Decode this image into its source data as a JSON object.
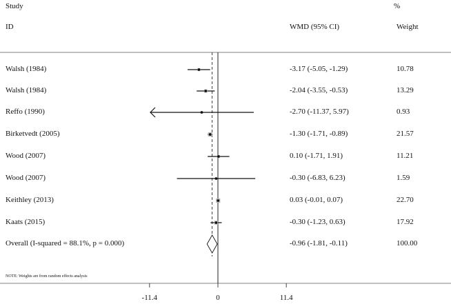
{
  "header": {
    "study_label": "Study",
    "id_label": "ID",
    "effect_label": "WMD (95% CI)",
    "pct_label": "%",
    "weight_label": "Weight"
  },
  "note": "NOTE: Weights are from random effects analysis",
  "chart_data": {
    "type": "forest",
    "effect_measure": "WMD (95% CI)",
    "studies": [
      {
        "study": "Walsh (1984)",
        "wmd": -3.17,
        "lower": -5.05,
        "upper": -1.29,
        "ci_text": "-3.17 (-5.05, -1.29)",
        "weight": "10.78"
      },
      {
        "study": "Walsh (1984)",
        "wmd": -2.04,
        "lower": -3.55,
        "upper": -0.53,
        "ci_text": "-2.04 (-3.55, -0.53)",
        "weight": "13.29"
      },
      {
        "study": "Reffo (1990)",
        "wmd": -2.7,
        "lower": -11.37,
        "upper": 5.97,
        "ci_text": "-2.70 (-11.37, 5.97)",
        "weight": "0.93"
      },
      {
        "study": "Birketvedt (2005)",
        "wmd": -1.3,
        "lower": -1.71,
        "upper": -0.89,
        "ci_text": "-1.30 (-1.71, -0.89)",
        "weight": "21.57"
      },
      {
        "study": "Wood (2007)",
        "wmd": 0.1,
        "lower": -1.71,
        "upper": 1.91,
        "ci_text": "0.10 (-1.71, 1.91)",
        "weight": "11.21"
      },
      {
        "study": "Wood (2007)",
        "wmd": -0.3,
        "lower": -6.83,
        "upper": 6.23,
        "ci_text": "-0.30 (-6.83, 6.23)",
        "weight": "1.59"
      },
      {
        "study": "Keithley (2013)",
        "wmd": 0.03,
        "lower": -0.01,
        "upper": 0.07,
        "ci_text": "0.03 (-0.01, 0.07)",
        "weight": "22.70"
      },
      {
        "study": "Kaats (2015)",
        "wmd": -0.3,
        "lower": -1.23,
        "upper": 0.63,
        "ci_text": "-0.30 (-1.23, 0.63)",
        "weight": "17.92"
      }
    ],
    "overall": {
      "label": "Overall  (I-squared = 88.1%, p = 0.000)",
      "wmd": -0.96,
      "lower": -1.81,
      "upper": -0.11,
      "ci_text": "-0.96 (-1.81, -0.11)",
      "weight": "100.00"
    },
    "x_ticks": [
      -11.4,
      0,
      11.4
    ],
    "x_tick_labels": [
      "-11.4",
      "0",
      "11.4"
    ],
    "xlim": [
      -11.4,
      11.4
    ],
    "null_line": 0,
    "pooled_line": -0.96
  }
}
